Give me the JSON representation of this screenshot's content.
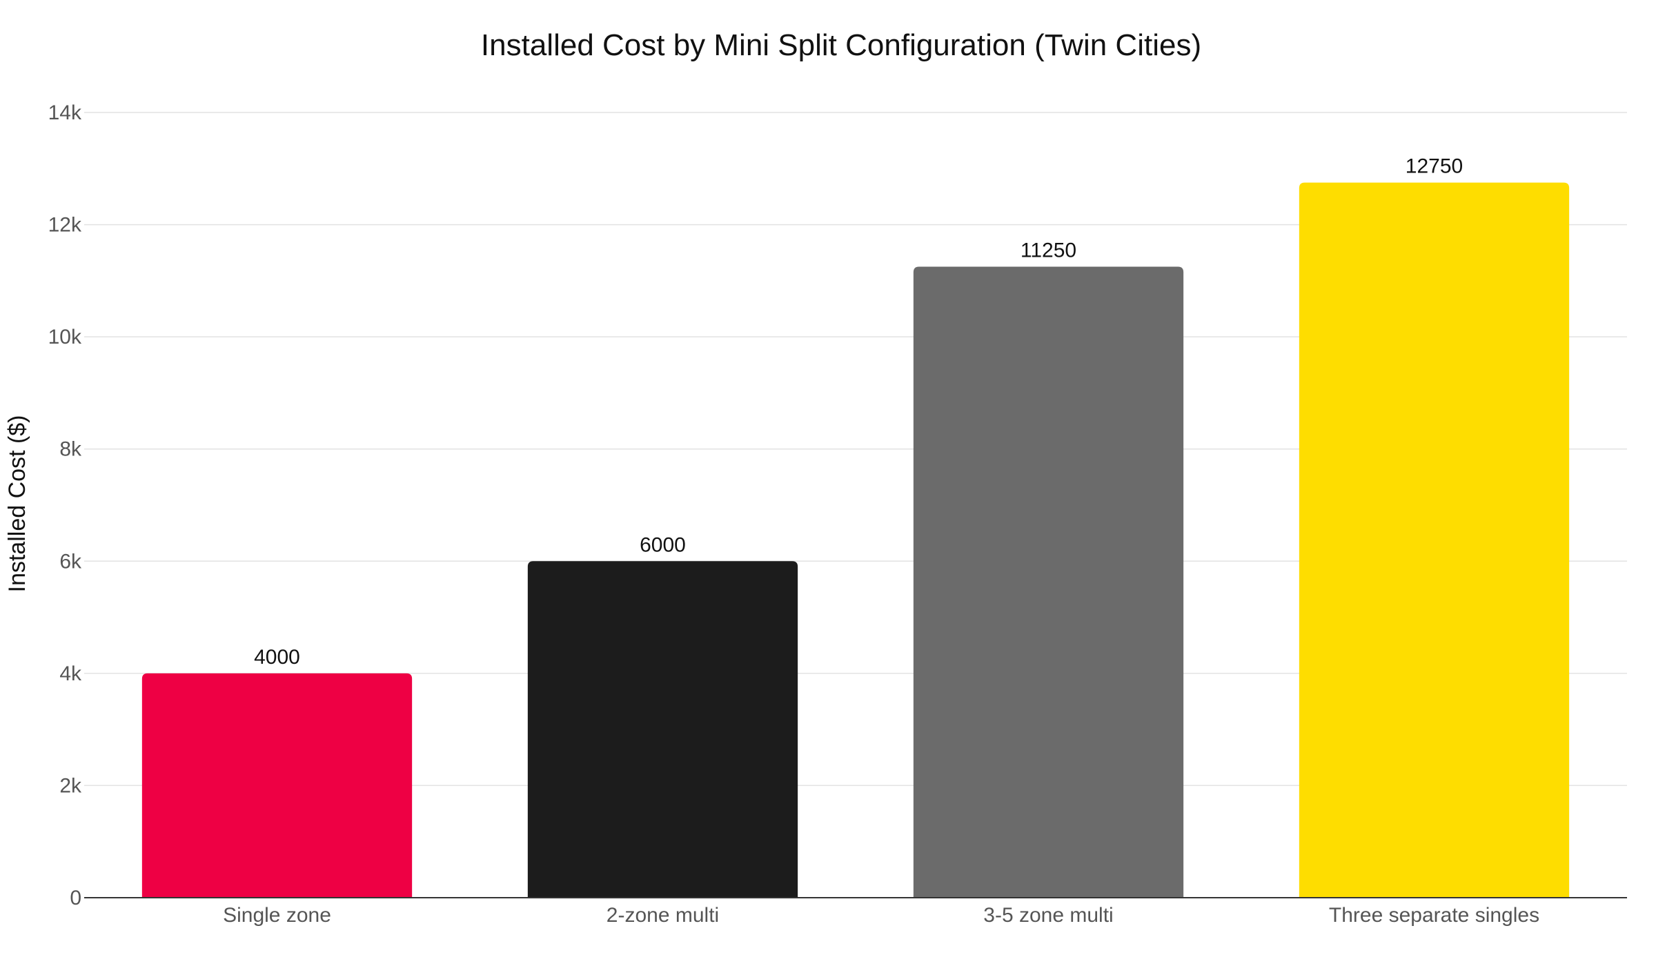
{
  "chart_data": {
    "type": "bar",
    "title": "Installed Cost by Mini Split Configuration (Twin Cities)",
    "xlabel": "",
    "ylabel": "Installed Cost ($)",
    "categories": [
      "Single zone",
      "2-zone multi",
      "3-5 zone multi",
      "Three separate singles"
    ],
    "values": [
      4000,
      6000,
      11250,
      12750
    ],
    "data_labels": [
      "4000",
      "6000",
      "11250",
      "12750"
    ],
    "colors": [
      "#EE0044",
      "#1C1C1C",
      "#6B6B6B",
      "#FEDD00"
    ],
    "ylim": [
      0,
      14000
    ],
    "yticks": [
      0,
      2000,
      4000,
      6000,
      8000,
      10000,
      12000,
      14000
    ],
    "ytick_labels": [
      "0",
      "2k",
      "4k",
      "6k",
      "8k",
      "10k",
      "12k",
      "14k"
    ],
    "grid": true,
    "legend": "none"
  }
}
